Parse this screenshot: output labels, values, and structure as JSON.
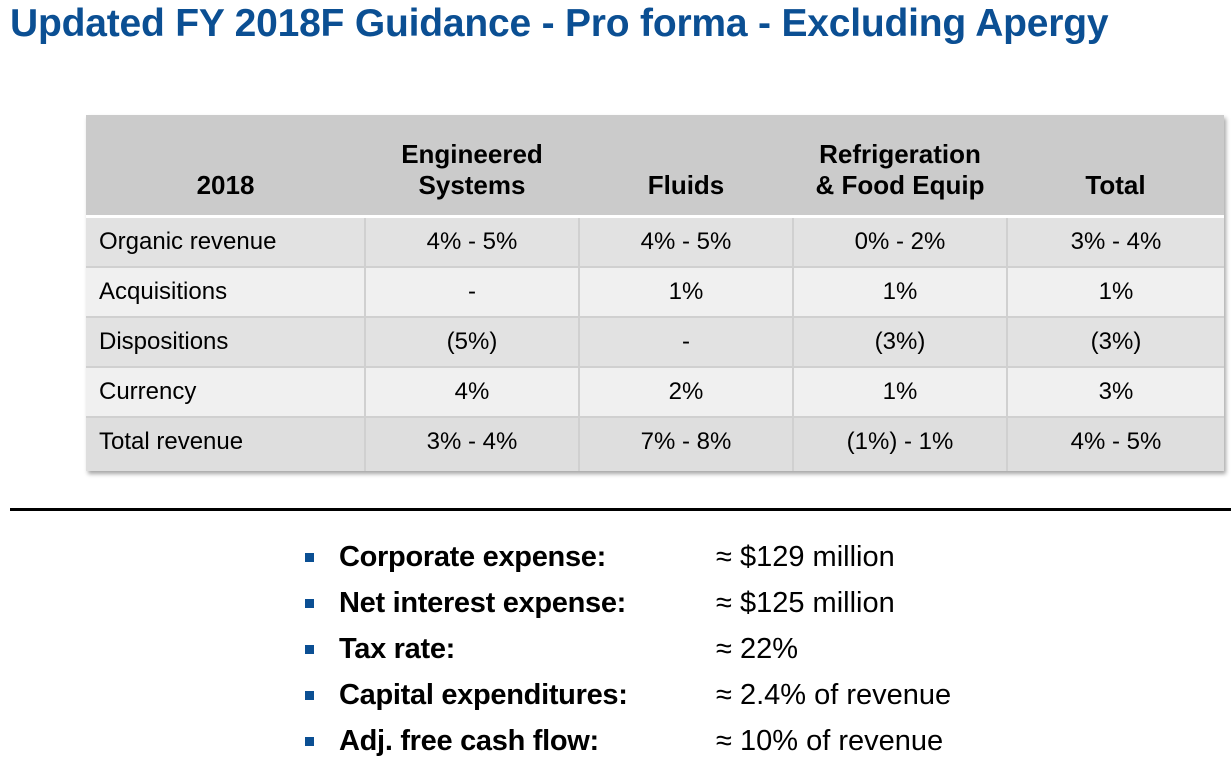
{
  "title": "Updated FY 2018F Guidance - Pro forma - Excluding Apergy",
  "table": {
    "headers": [
      {
        "line1": "",
        "line2": "2018"
      },
      {
        "line1": "Engineered",
        "line2": "Systems"
      },
      {
        "line1": "",
        "line2": "Fluids"
      },
      {
        "line1": "Refrigeration",
        "line2": "& Food Equip"
      },
      {
        "line1": "",
        "line2": "Total"
      }
    ],
    "rows": [
      {
        "label": "Organic revenue",
        "values": [
          "4% - 5%",
          "4% - 5%",
          "0% - 2%",
          "3% - 4%"
        ]
      },
      {
        "label": "Acquisitions",
        "values": [
          "-",
          "1%",
          "1%",
          "1%"
        ]
      },
      {
        "label": "Dispositions",
        "values": [
          "(5%)",
          "-",
          "(3%)",
          "(3%)"
        ]
      },
      {
        "label": "Currency",
        "values": [
          "4%",
          "2%",
          "1%",
          "3%"
        ]
      },
      {
        "label": "Total revenue",
        "values": [
          "3% - 4%",
          "7% - 8%",
          "(1%) - 1%",
          "4% - 5%"
        ]
      }
    ]
  },
  "guidance_items": [
    {
      "label": "Corporate expense:",
      "value": "≈ $129 million"
    },
    {
      "label": "Net interest expense:",
      "value": "≈ $125 million"
    },
    {
      "label": "Tax rate:",
      "value": "≈ 22%"
    },
    {
      "label": "Capital expenditures:",
      "value": "≈ 2.4% of revenue"
    },
    {
      "label": "Adj. free cash flow:",
      "value": "≈ 10% of revenue"
    }
  ],
  "colors": {
    "title": "#0b4f93",
    "bullet": "#0b4f93",
    "header_bg": "#cbcbcb"
  }
}
